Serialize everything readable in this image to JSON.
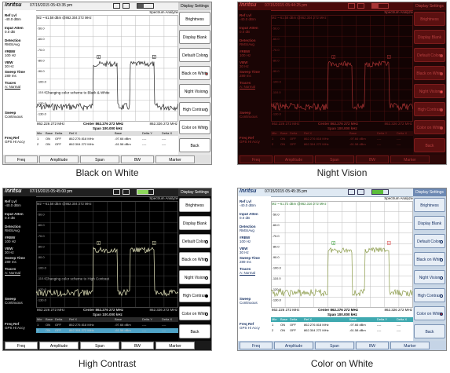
{
  "captions": {
    "bw": "Black on White",
    "nv": "Night Vision",
    "hc": "High Contrast",
    "cw": "Color on White"
  },
  "screen": {
    "logo": "/nritsu",
    "spectrum_analyzer": "Spectrum Analyzer",
    "timestamps": {
      "bw": "07/15/2015 05:43:35 pm",
      "nv": "07/15/2015 05:44:25 pm",
      "hc": "07/15/2015 05:45:00 pm",
      "cw": "07/15/2015 05:45:35 pm"
    },
    "marker_readout": "M2 ~-61.58 dBm @862.304 272 MHz",
    "marker_readout_hc": "M2 ~-61.58 dBm @862.304 272 MHz",
    "marker_readout_cw": "M2 ~-61.72 dBm @862.316 272 MHz",
    "grid_labels": [
      "-40.0 dBm",
      "-50.0",
      "-60.0",
      "-70.0",
      "-80.0",
      "-90.0",
      "-100.0",
      "-110.0",
      "-120.0",
      "-130.0"
    ],
    "overlay_texts": {
      "bw": "Changing color scheme to Black & White",
      "nv": "",
      "hc": "Changing color scheme to High Contrast",
      "cw": ""
    },
    "start_freq": "862.226 272 MHz",
    "stop_freq": "862.326 272 MHz",
    "center": "Center 862.276 272 MHz",
    "span": "Span 100.000 kHz",
    "marker_table": {
      "headers": [
        "Mkr",
        "Base",
        "Delta",
        "Ref X",
        "Base",
        "Delta Y",
        "Delta X"
      ],
      "rows": [
        [
          "1",
          "ON",
          "OFF",
          "862.276 818 MHz",
          "-97.66 dBm",
          "----",
          "----"
        ],
        [
          "2",
          "ON",
          "OFF",
          "862.304 272 MHz",
          "-61.58 dBm",
          "----",
          "----"
        ]
      ]
    },
    "left_panel": [
      {
        "label": "Ref Lvl",
        "value": "-40.0 dBm"
      },
      {
        "label": "Input Atten",
        "value": "0.0 dB"
      },
      {
        "label": "Detection",
        "value": "RMS/Avg"
      },
      {
        "label": "#RBW",
        "value": "100 Hz"
      },
      {
        "label": "VBW",
        "value": "30 Hz"
      },
      {
        "label": "Sweep Time",
        "value": "289 ms"
      },
      {
        "label": "Traces",
        "value": "A: Normal"
      },
      {
        "label": "Sweep",
        "value": "Continuous"
      },
      {
        "label": "Freq Ref",
        "value": "GPS Hi Accy"
      }
    ],
    "right_menu": {
      "title": "Display Settings",
      "buttons": [
        "Brightness",
        "Display Blank",
        "Default Colors",
        "Black on White",
        "Night Vision",
        "High Contrast",
        "Color on White",
        "Back"
      ]
    },
    "bottom_tabs": [
      "Freq",
      "Amplitude",
      "Span",
      "BW",
      "Marker"
    ],
    "marker_flags": [
      "1",
      "2"
    ]
  },
  "colors": {
    "trace_bw": "#222222",
    "trace_nv": "#a83232",
    "trace_hc": "#e8e8c0",
    "trace_cw": "#8a9a48",
    "marker_cw": "#2d9a2d",
    "marker_cw2": "#d83a3a"
  },
  "selected_theme_index": {
    "bw": 3,
    "nv": 4,
    "hc": 5,
    "cw": 6
  }
}
